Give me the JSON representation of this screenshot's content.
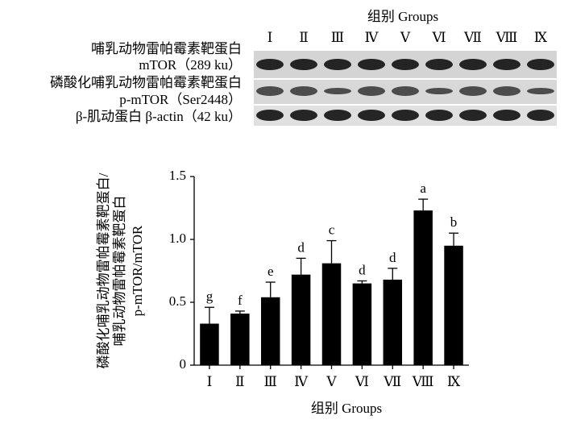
{
  "blot": {
    "title": "组别 Groups",
    "lanes": [
      "Ⅰ",
      "Ⅱ",
      "Ⅲ",
      "Ⅳ",
      "Ⅴ",
      "Ⅵ",
      "Ⅶ",
      "Ⅷ",
      "Ⅸ"
    ],
    "rows": [
      {
        "label": "哺乳动物雷帕霉素靶蛋白",
        "sublabel": "mTOR（289 ku）"
      },
      {
        "label": "磷酸化哺乳动物雷帕霉素靶蛋白",
        "sublabel": "p-mTOR（Ser2448）"
      },
      {
        "label": "β-肌动蛋白  β-actin（42 ku）"
      }
    ]
  },
  "chart_data": {
    "type": "bar",
    "y_label": [
      "磷酸化哺乳动物雷帕霉素靶蛋白/",
      "哺乳动物雷帕霉素靶蛋白",
      "p-mTOR/mTOR"
    ],
    "x_label": "组别 Groups",
    "categories": [
      "Ⅰ",
      "Ⅱ",
      "Ⅲ",
      "Ⅳ",
      "Ⅴ",
      "Ⅵ",
      "Ⅶ",
      "Ⅷ",
      "Ⅸ"
    ],
    "series": [
      {
        "color": "#000000",
        "values": [
          0.33,
          0.41,
          0.54,
          0.72,
          0.81,
          0.65,
          0.68,
          1.23,
          0.95
        ],
        "errors": [
          0.13,
          0.02,
          0.12,
          0.13,
          0.18,
          0.02,
          0.09,
          0.09,
          0.1
        ],
        "annotations": [
          "g",
          "f",
          "e",
          "d",
          "c",
          "d",
          "d",
          "a",
          "b"
        ]
      }
    ],
    "ylim": [
      0,
      1.5
    ],
    "yticks": [
      0,
      0.5,
      {
        "value": 1.0,
        "label": "1.0"
      },
      1.5
    ]
  }
}
